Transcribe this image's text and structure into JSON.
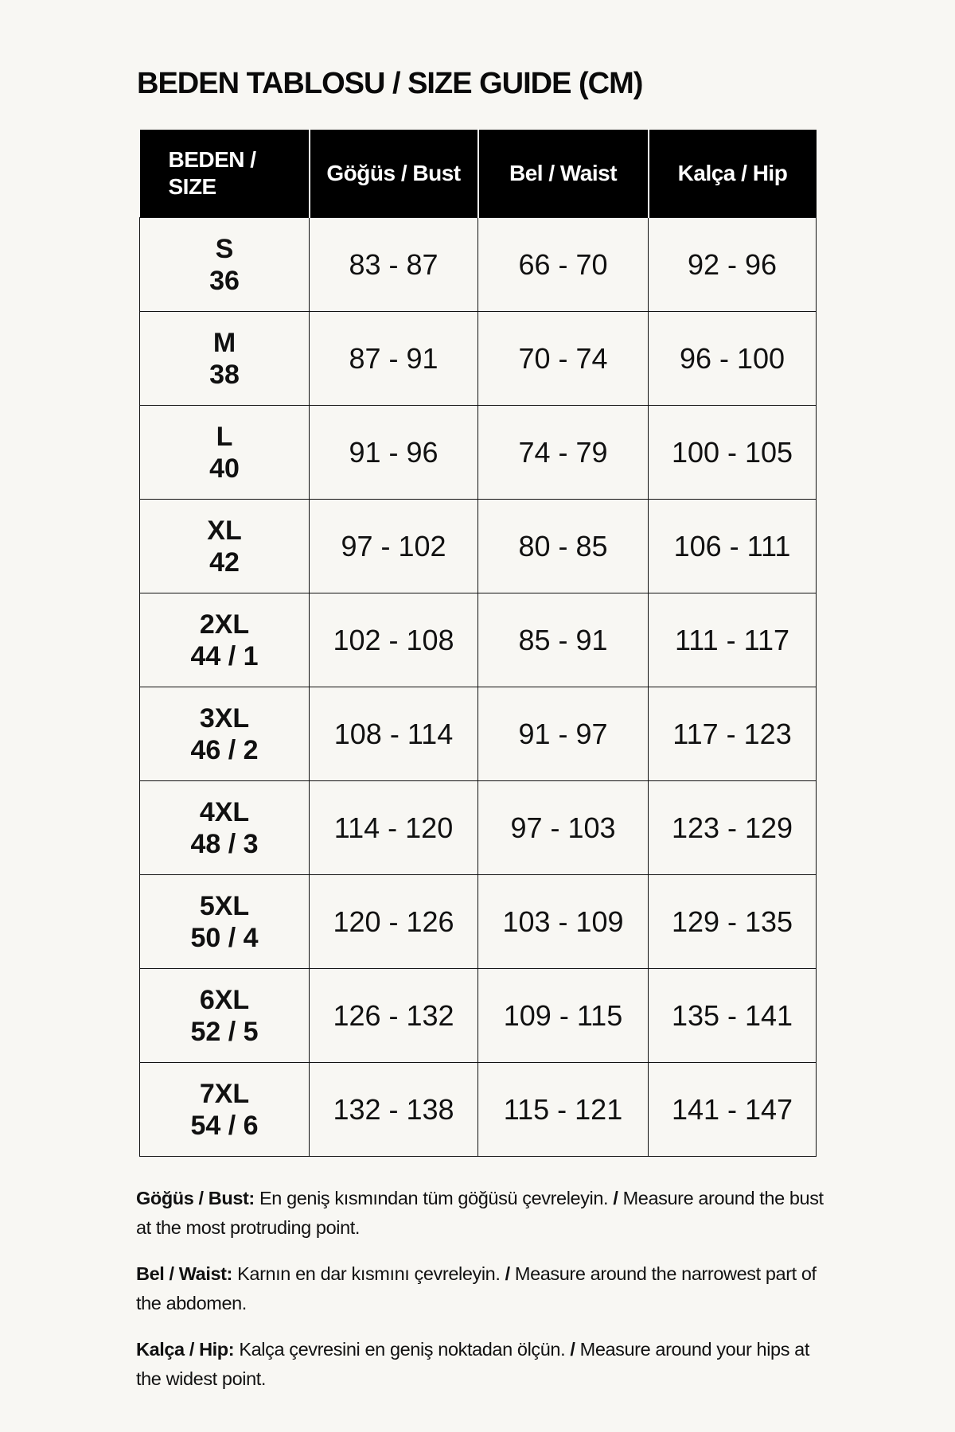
{
  "title": "BEDEN TABLOSU / SIZE GUIDE (CM)",
  "table": {
    "headers": [
      "BEDEN / SIZE",
      "Göğüs / Bust",
      "Bel / Waist",
      "Kalça / Hip"
    ],
    "header_size_lines": [
      "BEDEN /",
      "SIZE"
    ],
    "rows": [
      {
        "size": "S",
        "num": "36",
        "bust": "83 - 87",
        "waist": "66 - 70",
        "hip": "92 - 96"
      },
      {
        "size": "M",
        "num": "38",
        "bust": "87 - 91",
        "waist": "70 - 74",
        "hip": "96 - 100"
      },
      {
        "size": "L",
        "num": "40",
        "bust": "91 - 96",
        "waist": "74 - 79",
        "hip": "100 - 105"
      },
      {
        "size": "XL",
        "num": "42",
        "bust": "97 - 102",
        "waist": "80 - 85",
        "hip": "106 - 111"
      },
      {
        "size": "2XL",
        "num": "44 / 1",
        "bust": "102 - 108",
        "waist": "85 - 91",
        "hip": "111 - 117"
      },
      {
        "size": "3XL",
        "num": "46 / 2",
        "bust": "108 - 114",
        "waist": "91 - 97",
        "hip": "117 - 123"
      },
      {
        "size": "4XL",
        "num": "48 / 3",
        "bust": "114 - 120",
        "waist": "97 - 103",
        "hip": "123 - 129"
      },
      {
        "size": "5XL",
        "num": "50 / 4",
        "bust": "120 - 126",
        "waist": "103 - 109",
        "hip": "129 - 135"
      },
      {
        "size": "6XL",
        "num": "52 / 5",
        "bust": "126 - 132",
        "waist": "109 - 115",
        "hip": "135 - 141"
      },
      {
        "size": "7XL",
        "num": "54 / 6",
        "bust": "132 - 138",
        "waist": "115 - 121",
        "hip": "141 - 147"
      }
    ]
  },
  "notes": [
    {
      "label": "Göğüs / Bust:",
      "tr": "En geniş kısmından tüm göğüsü çevreleyin.",
      "sep": "/",
      "en": "Measure around the bust at the most protruding point."
    },
    {
      "label": "Bel / Waist:",
      "tr": "Karnın en dar kısmını çevreleyin.",
      "sep": "/",
      "en": "Measure around the narrowest part of the abdomen."
    },
    {
      "label": "Kalça / Hip:",
      "tr": "Kalça çevresini en geniş noktadan ölçün.",
      "sep": "/",
      "en": "Measure around your hips at the widest point."
    }
  ],
  "colors": {
    "background": "#f8f7f3",
    "header_bg": "#000000",
    "header_text": "#ffffff"
  }
}
